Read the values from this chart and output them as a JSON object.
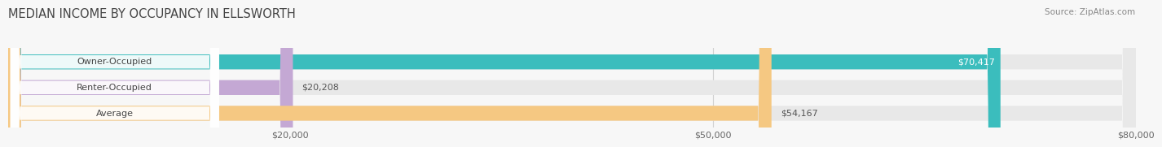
{
  "title": "MEDIAN INCOME BY OCCUPANCY IN ELLSWORTH",
  "source_text": "Source: ZipAtlas.com",
  "categories": [
    "Owner-Occupied",
    "Renter-Occupied",
    "Average"
  ],
  "values": [
    70417,
    20208,
    54167
  ],
  "bar_colors": [
    "#3bbdbd",
    "#c4a8d4",
    "#f5c882"
  ],
  "value_labels": [
    "$70,417",
    "$20,208",
    "$54,167"
  ],
  "value_label_inside": [
    true,
    false,
    false
  ],
  "bar_bg_color": "#e8e8e8",
  "label_box_color": "#f5f5f5",
  "background_color": "#f7f7f7",
  "title_fontsize": 10.5,
  "source_fontsize": 7.5,
  "cat_label_fontsize": 8,
  "value_label_fontsize": 8,
  "xlim_max": 80000,
  "xticks": [
    20000,
    50000,
    80000
  ],
  "xtick_labels": [
    "$20,000",
    "$50,000",
    "$80,000"
  ],
  "bar_height": 0.58,
  "grid_color": "#d0d0d0",
  "title_color": "#444444",
  "source_color": "#888888",
  "cat_label_color": "#444444",
  "value_label_inside_color": "#ffffff",
  "value_label_outside_color": "#555555"
}
